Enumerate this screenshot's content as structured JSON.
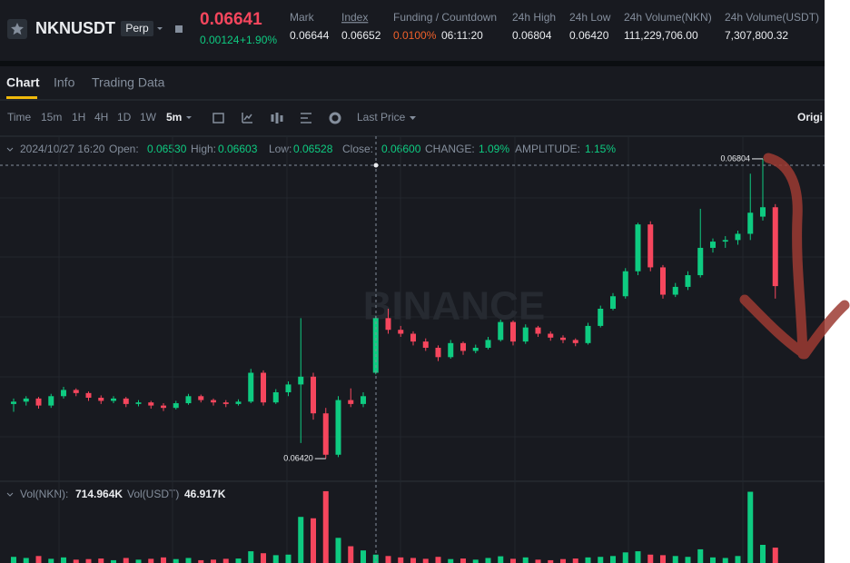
{
  "header": {
    "symbol": "NKNUSDT",
    "badge": "Perp",
    "price": "0.06641",
    "change": "0.00124",
    "change_pct": "+1.90%",
    "stats": [
      {
        "label": "Mark",
        "value": "0.06644"
      },
      {
        "label": "Index",
        "value": "0.06652"
      },
      {
        "label": "Funding / Countdown",
        "value": "0.0100%",
        "value2": "06:11:20"
      },
      {
        "label": "24h High",
        "value": "0.06804"
      },
      {
        "label": "24h Low",
        "value": "0.06420"
      },
      {
        "label": "24h Volume(NKN)",
        "value": "111,229,706.00"
      },
      {
        "label": "24h Volume(USDT)",
        "value": "7,307,800.32"
      }
    ]
  },
  "tabs": [
    "Chart",
    "Info",
    "Trading Data"
  ],
  "toolbar": {
    "intervals": [
      "Time",
      "15m",
      "1H",
      "4H",
      "1D",
      "1W",
      "5m"
    ],
    "price_type": "Last Price",
    "right": "Origi"
  },
  "ohlc_bar": {
    "date": "2024/10/27 16:20",
    "items": [
      {
        "label": "Open:",
        "value": "0.06530"
      },
      {
        "label": "High:",
        "value": "0.06603"
      },
      {
        "label": "Low:",
        "value": "0.06528"
      },
      {
        "label": "Close:",
        "value": "0.06600"
      },
      {
        "label": "CHANGE:",
        "value": "1.09%"
      },
      {
        "label": "AMPLITUDE:",
        "value": "1.15%"
      }
    ]
  },
  "volume_bar": [
    {
      "label": "Vol(NKN):",
      "value": "714.964K"
    },
    {
      "label": "Vol(USDT)",
      "value": "46.917K"
    }
  ],
  "chart_data": {
    "type": "candlestick",
    "watermark": "BINANCE",
    "up_color": "#0ecb81",
    "down_color": "#f6465d",
    "ylim": [
      0.06391,
      0.06833
    ],
    "max_marker": 0.06804,
    "min_marker": {
      "value": 0.0642,
      "label": "0.06420"
    },
    "candles": [
      [
        0.0649,
        0.06497,
        0.0648,
        0.06493
      ],
      [
        0.06493,
        0.065,
        0.06488,
        0.06497
      ],
      [
        0.06497,
        0.06499,
        0.06484,
        0.06488
      ],
      [
        0.06488,
        0.06503,
        0.06485,
        0.065
      ],
      [
        0.065,
        0.06512,
        0.06497,
        0.06508
      ],
      [
        0.06508,
        0.0651,
        0.065,
        0.06504
      ],
      [
        0.06504,
        0.06506,
        0.06494,
        0.06498
      ],
      [
        0.06498,
        0.06501,
        0.0649,
        0.06494
      ],
      [
        0.06494,
        0.065,
        0.06491,
        0.06497
      ],
      [
        0.06497,
        0.06499,
        0.06486,
        0.0649
      ],
      [
        0.0649,
        0.06495,
        0.06487,
        0.06492
      ],
      [
        0.06492,
        0.06494,
        0.06484,
        0.06488
      ],
      [
        0.06488,
        0.06491,
        0.06481,
        0.06485
      ],
      [
        0.06485,
        0.06494,
        0.06483,
        0.06491
      ],
      [
        0.06491,
        0.06503,
        0.06489,
        0.065
      ],
      [
        0.065,
        0.06502,
        0.06492,
        0.06495
      ],
      [
        0.06495,
        0.06497,
        0.06488,
        0.06492
      ],
      [
        0.06492,
        0.06495,
        0.06486,
        0.0649
      ],
      [
        0.0649,
        0.06496,
        0.06488,
        0.06493
      ],
      [
        0.06493,
        0.06535,
        0.06491,
        0.0653
      ],
      [
        0.0653,
        0.06533,
        0.06488,
        0.06492
      ],
      [
        0.06492,
        0.06509,
        0.0649,
        0.06505
      ],
      [
        0.06505,
        0.06519,
        0.065,
        0.06515
      ],
      [
        0.06515,
        0.066,
        0.0644,
        0.06525
      ],
      [
        0.06525,
        0.0653,
        0.0647,
        0.06478
      ],
      [
        0.06478,
        0.06485,
        0.0642,
        0.06425
      ],
      [
        0.06425,
        0.065,
        0.06422,
        0.06495
      ],
      [
        0.06495,
        0.0651,
        0.06486,
        0.0649
      ],
      [
        0.0649,
        0.06505,
        0.06486,
        0.065
      ],
      [
        0.0653,
        0.06603,
        0.06528,
        0.066
      ],
      [
        0.066,
        0.06612,
        0.0658,
        0.06585
      ],
      [
        0.06585,
        0.0659,
        0.06576,
        0.0658
      ],
      [
        0.0658,
        0.06583,
        0.06565,
        0.0657
      ],
      [
        0.0657,
        0.06574,
        0.06558,
        0.06562
      ],
      [
        0.06562,
        0.06565,
        0.06545,
        0.0655
      ],
      [
        0.0655,
        0.06572,
        0.06548,
        0.06568
      ],
      [
        0.06568,
        0.0657,
        0.06553,
        0.06558
      ],
      [
        0.06558,
        0.06566,
        0.06555,
        0.06562
      ],
      [
        0.06562,
        0.06576,
        0.0656,
        0.06572
      ],
      [
        0.06572,
        0.06598,
        0.0657,
        0.06595
      ],
      [
        0.06595,
        0.06597,
        0.06565,
        0.0657
      ],
      [
        0.0657,
        0.06592,
        0.06567,
        0.06588
      ],
      [
        0.06588,
        0.0659,
        0.06576,
        0.0658
      ],
      [
        0.0658,
        0.06583,
        0.06571,
        0.06575
      ],
      [
        0.06575,
        0.06578,
        0.06568,
        0.06572
      ],
      [
        0.06572,
        0.06574,
        0.06564,
        0.06568
      ],
      [
        0.06568,
        0.06594,
        0.06566,
        0.0659
      ],
      [
        0.0659,
        0.06616,
        0.06588,
        0.06612
      ],
      [
        0.06612,
        0.06632,
        0.0661,
        0.06628
      ],
      [
        0.06628,
        0.06664,
        0.06625,
        0.0666
      ],
      [
        0.0666,
        0.06722,
        0.06655,
        0.0672
      ],
      [
        0.0672,
        0.06724,
        0.0666,
        0.06665
      ],
      [
        0.06665,
        0.06668,
        0.06625,
        0.0663
      ],
      [
        0.0663,
        0.06645,
        0.06627,
        0.0664
      ],
      [
        0.0664,
        0.0666,
        0.06636,
        0.06655
      ],
      [
        0.06655,
        0.0674,
        0.06652,
        0.0669
      ],
      [
        0.0669,
        0.06702,
        0.06684,
        0.06698
      ],
      [
        0.06698,
        0.06705,
        0.0669,
        0.067
      ],
      [
        0.067,
        0.06712,
        0.06694,
        0.06708
      ],
      [
        0.06708,
        0.06785,
        0.067,
        0.06735
      ],
      [
        0.0673,
        0.06804,
        0.06725,
        0.06742
      ],
      [
        0.06742,
        0.06746,
        0.06625,
        0.06641
      ]
    ],
    "volume_ylim": [
      0,
      260
    ],
    "volumes": [
      22,
      18,
      25,
      15,
      20,
      12,
      14,
      16,
      10,
      18,
      12,
      15,
      20,
      14,
      18,
      10,
      12,
      15,
      16,
      42,
      35,
      28,
      30,
      165,
      160,
      257,
      90,
      60,
      45,
      30,
      25,
      20,
      18,
      15,
      22,
      14,
      16,
      12,
      18,
      24,
      15,
      20,
      12,
      10,
      14,
      16,
      20,
      22,
      25,
      38,
      42,
      30,
      28,
      25,
      22,
      49,
      20,
      18,
      25,
      255,
      65,
      55
    ]
  }
}
